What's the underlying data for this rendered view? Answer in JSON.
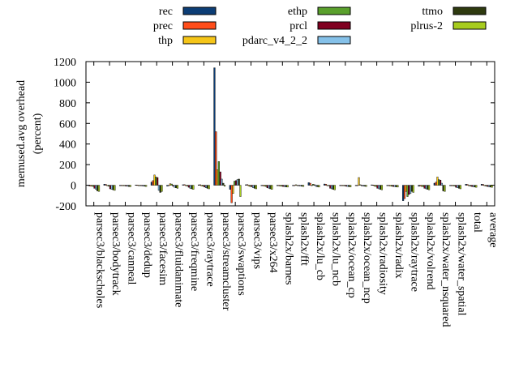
{
  "chart_data": {
    "type": "bar",
    "title": "",
    "xlabel": "",
    "ylabel_lines": [
      "memused.avg overhead",
      "(percent)"
    ],
    "ylim": [
      -200,
      1200
    ],
    "yticks": [
      -200,
      0,
      200,
      400,
      600,
      800,
      1000,
      1200
    ],
    "grid": false,
    "legend_position": "top",
    "categories": [
      "parsec3/blackscholes",
      "parsec3/bodytrack",
      "parsec3/canneal",
      "parsec3/dedup",
      "parsec3/facesim",
      "parsec3/fluidanimate",
      "parsec3/freqmine",
      "parsec3/raytrace",
      "parsec3/streamcluster",
      "parsec3/swaptions",
      "parsec3/vips",
      "parsec3/x264",
      "splash2x/barnes",
      "splash2x/fft",
      "splash2x/lu_cb",
      "splash2x/lu_ncb",
      "splash2x/ocean_cp",
      "splash2x/ocean_ncp",
      "splash2x/radiosity",
      "splash2x/radix",
      "splash2x/raytrace",
      "splash2x/volrend",
      "splash2x/water_nsquared",
      "splash2x/water_spatial",
      "total",
      "average"
    ],
    "series": [
      {
        "name": "rec",
        "color": "#0c3d75",
        "values": [
          -5,
          10,
          -3,
          3,
          30,
          -8,
          5,
          4,
          1140,
          -40,
          5,
          -4,
          -3,
          -5,
          25,
          12,
          -2,
          -3,
          4,
          -3,
          -150,
          -10,
          20,
          -5,
          10,
          10
        ]
      },
      {
        "name": "prec",
        "color": "#ff4d1a",
        "values": [
          -8,
          8,
          -4,
          2,
          45,
          -5,
          6,
          5,
          520,
          -170,
          6,
          -5,
          -4,
          -4,
          20,
          10,
          -3,
          -4,
          3,
          -4,
          -130,
          -8,
          30,
          -6,
          8,
          8
        ]
      },
      {
        "name": "thp",
        "color": "#f5c518",
        "values": [
          -10,
          -5,
          -5,
          -3,
          100,
          15,
          -5,
          -8,
          150,
          -80,
          -8,
          -10,
          -8,
          5,
          -4,
          -5,
          -5,
          75,
          -10,
          -8,
          -60,
          -12,
          80,
          -5,
          -5,
          -5
        ]
      },
      {
        "name": "ethp",
        "color": "#5aa02c",
        "values": [
          -12,
          -10,
          -6,
          -5,
          80,
          12,
          -8,
          -10,
          230,
          40,
          -12,
          -12,
          -10,
          -4,
          10,
          -6,
          -6,
          5,
          -12,
          -10,
          -110,
          -14,
          55,
          -8,
          -8,
          -8
        ]
      },
      {
        "name": "prcl",
        "color": "#800020",
        "values": [
          -30,
          -35,
          -8,
          -6,
          75,
          -10,
          -20,
          -18,
          130,
          45,
          -15,
          -25,
          -12,
          -6,
          5,
          -30,
          -10,
          -6,
          -30,
          -12,
          -90,
          -30,
          50,
          -20,
          -12,
          -12
        ]
      },
      {
        "name": "pdarc_v4_2_2",
        "color": "#85c1e9",
        "values": [
          -40,
          -40,
          -10,
          -8,
          -50,
          -20,
          -30,
          -25,
          60,
          55,
          -25,
          -30,
          -14,
          -8,
          -12,
          -35,
          -12,
          -8,
          -35,
          -14,
          -80,
          -35,
          20,
          -25,
          -15,
          -15
        ]
      },
      {
        "name": "ttmo",
        "color": "#2e3a0f",
        "values": [
          -55,
          -45,
          -12,
          -10,
          -70,
          -25,
          -35,
          -30,
          20,
          60,
          -30,
          -35,
          -16,
          -10,
          -15,
          -40,
          -14,
          -10,
          -40,
          -16,
          -60,
          -40,
          -55,
          -30,
          -18,
          -18
        ]
      },
      {
        "name": "plrus-2",
        "color": "#a7cc1e",
        "values": [
          -60,
          -50,
          -14,
          -12,
          -60,
          -30,
          -40,
          -35,
          -10,
          -110,
          -35,
          -40,
          -18,
          -12,
          -18,
          -45,
          -16,
          -12,
          -45,
          -18,
          -70,
          -45,
          -60,
          -35,
          -20,
          -20
        ]
      }
    ]
  }
}
